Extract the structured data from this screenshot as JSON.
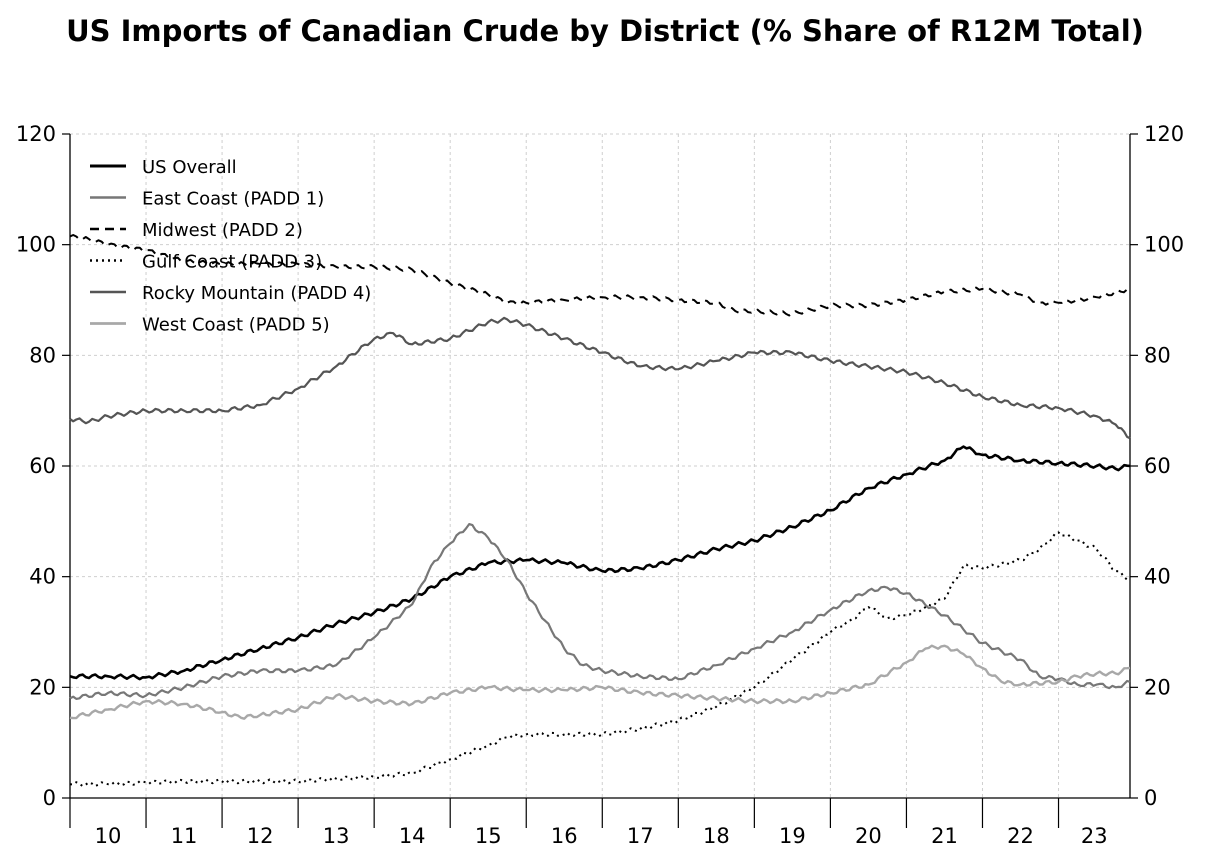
{
  "chart_data": {
    "type": "line",
    "title": "US Imports of Canadian Crude by District (% Share of R12M Total)",
    "xlabel": "",
    "ylabel": "",
    "x_tick_labels": [
      "10",
      "11",
      "12",
      "13",
      "14",
      "15",
      "16",
      "17",
      "18",
      "19",
      "20",
      "21",
      "22",
      "23"
    ],
    "x_range": [
      2010.0,
      2023.94
    ],
    "ylim": [
      0,
      120
    ],
    "y_ticks": [
      0,
      20,
      40,
      60,
      80,
      100,
      120
    ],
    "y_tick_labels": [
      "0",
      "20",
      "40",
      "60",
      "80",
      "100",
      "120"
    ],
    "right_axis": true,
    "grid": true,
    "legend_position": "top-left",
    "series": [
      {
        "name": "US Overall",
        "color": "#000000",
        "width": 2.6,
        "dash": "",
        "points": [
          [
            2010.0,
            22
          ],
          [
            2010.5,
            22
          ],
          [
            2011.0,
            21.8
          ],
          [
            2011.5,
            23
          ],
          [
            2012.0,
            25
          ],
          [
            2012.5,
            27
          ],
          [
            2013.0,
            29
          ],
          [
            2013.5,
            31.5
          ],
          [
            2014.0,
            33.5
          ],
          [
            2014.5,
            36
          ],
          [
            2015.0,
            40
          ],
          [
            2015.5,
            42.5
          ],
          [
            2016.0,
            43
          ],
          [
            2016.5,
            42.5
          ],
          [
            2017.0,
            41
          ],
          [
            2017.5,
            41.5
          ],
          [
            2018.0,
            43
          ],
          [
            2018.5,
            45
          ],
          [
            2019.0,
            46.5
          ],
          [
            2019.5,
            49
          ],
          [
            2020.0,
            52
          ],
          [
            2020.5,
            56
          ],
          [
            2021.0,
            58.5
          ],
          [
            2021.5,
            61
          ],
          [
            2021.75,
            63.5
          ],
          [
            2022.0,
            62
          ],
          [
            2022.5,
            61
          ],
          [
            2023.0,
            60.5
          ],
          [
            2023.5,
            60
          ],
          [
            2023.75,
            59.5
          ],
          [
            2023.94,
            60
          ]
        ]
      },
      {
        "name": "East Coast (PADD 1)",
        "color": "#777777",
        "width": 2.2,
        "dash": "",
        "points": [
          [
            2010.0,
            18
          ],
          [
            2010.5,
            19
          ],
          [
            2011.0,
            18.5
          ],
          [
            2011.5,
            20
          ],
          [
            2012.0,
            22
          ],
          [
            2012.5,
            23
          ],
          [
            2013.0,
            23
          ],
          [
            2013.5,
            24
          ],
          [
            2014.0,
            29
          ],
          [
            2014.5,
            35
          ],
          [
            2014.75,
            42
          ],
          [
            2015.0,
            46
          ],
          [
            2015.25,
            49.5
          ],
          [
            2015.5,
            47
          ],
          [
            2015.75,
            43
          ],
          [
            2016.0,
            37
          ],
          [
            2016.25,
            32
          ],
          [
            2016.5,
            27
          ],
          [
            2016.75,
            24
          ],
          [
            2017.0,
            23
          ],
          [
            2017.5,
            22
          ],
          [
            2018.0,
            21.5
          ],
          [
            2018.5,
            24
          ],
          [
            2019.0,
            27
          ],
          [
            2019.5,
            30
          ],
          [
            2020.0,
            34
          ],
          [
            2020.5,
            37.5
          ],
          [
            2020.75,
            38
          ],
          [
            2021.0,
            37
          ],
          [
            2021.5,
            33
          ],
          [
            2022.0,
            28
          ],
          [
            2022.5,
            25
          ],
          [
            2022.75,
            22
          ],
          [
            2023.0,
            21.5
          ],
          [
            2023.25,
            20.5
          ],
          [
            2023.5,
            20.5
          ],
          [
            2023.75,
            20
          ],
          [
            2023.94,
            21
          ]
        ]
      },
      {
        "name": "Midwest (PADD 2)",
        "color": "#000000",
        "width": 2.0,
        "dash": "9 6",
        "points": [
          [
            2010.0,
            101.5
          ],
          [
            2010.25,
            101
          ],
          [
            2010.5,
            100
          ],
          [
            2011.0,
            99
          ],
          [
            2011.5,
            97
          ],
          [
            2012.0,
            96.5
          ],
          [
            2012.5,
            96.5
          ],
          [
            2013.0,
            96.5
          ],
          [
            2013.5,
            96
          ],
          [
            2014.0,
            96
          ],
          [
            2014.5,
            95.5
          ],
          [
            2015.0,
            93
          ],
          [
            2015.5,
            91
          ],
          [
            2015.75,
            89.5
          ],
          [
            2016.0,
            89.5
          ],
          [
            2016.5,
            90
          ],
          [
            2017.0,
            90.5
          ],
          [
            2017.5,
            90.5
          ],
          [
            2018.0,
            90
          ],
          [
            2018.5,
            89.5
          ],
          [
            2018.75,
            88
          ],
          [
            2019.0,
            88
          ],
          [
            2019.5,
            87.5
          ],
          [
            2020.0,
            89
          ],
          [
            2020.5,
            89
          ],
          [
            2021.0,
            90
          ],
          [
            2021.5,
            91.5
          ],
          [
            2022.0,
            92
          ],
          [
            2022.5,
            91
          ],
          [
            2022.75,
            89.5
          ],
          [
            2023.0,
            89.5
          ],
          [
            2023.5,
            90.5
          ],
          [
            2023.94,
            92
          ]
        ]
      },
      {
        "name": "Gulf Coast (PADD 3)",
        "color": "#000000",
        "width": 2.0,
        "dash": "2 4",
        "points": [
          [
            2010.0,
            2.5
          ],
          [
            2010.5,
            2.5
          ],
          [
            2011.0,
            2.8
          ],
          [
            2011.5,
            3
          ],
          [
            2012.0,
            3
          ],
          [
            2012.5,
            3
          ],
          [
            2013.0,
            3
          ],
          [
            2013.5,
            3.5
          ],
          [
            2014.0,
            3.8
          ],
          [
            2014.5,
            4.5
          ],
          [
            2015.0,
            7
          ],
          [
            2015.5,
            9.5
          ],
          [
            2015.75,
            11
          ],
          [
            2016.0,
            11.5
          ],
          [
            2016.5,
            11.5
          ],
          [
            2017.0,
            11.5
          ],
          [
            2017.5,
            12.5
          ],
          [
            2018.0,
            14
          ],
          [
            2018.5,
            16.5
          ],
          [
            2019.0,
            20
          ],
          [
            2019.5,
            25
          ],
          [
            2020.0,
            30
          ],
          [
            2020.25,
            32
          ],
          [
            2020.5,
            34.5
          ],
          [
            2020.75,
            32.5
          ],
          [
            2021.0,
            33
          ],
          [
            2021.25,
            34.5
          ],
          [
            2021.5,
            36
          ],
          [
            2021.75,
            42
          ],
          [
            2022.0,
            41.5
          ],
          [
            2022.5,
            43
          ],
          [
            2022.75,
            45
          ],
          [
            2023.0,
            48
          ],
          [
            2023.25,
            46.5
          ],
          [
            2023.5,
            45
          ],
          [
            2023.75,
            41
          ],
          [
            2023.94,
            39.5
          ]
        ]
      },
      {
        "name": "Rocky Mountain (PADD 4)",
        "color": "#555555",
        "width": 2.2,
        "dash": "",
        "points": [
          [
            2010.0,
            68.5
          ],
          [
            2010.25,
            68
          ],
          [
            2010.5,
            69
          ],
          [
            2011.0,
            70
          ],
          [
            2011.5,
            70
          ],
          [
            2012.0,
            70
          ],
          [
            2012.5,
            71
          ],
          [
            2013.0,
            74
          ],
          [
            2013.5,
            78
          ],
          [
            2014.0,
            83
          ],
          [
            2014.25,
            84
          ],
          [
            2014.5,
            82
          ],
          [
            2015.0,
            83
          ],
          [
            2015.5,
            86
          ],
          [
            2015.75,
            86.5
          ],
          [
            2016.0,
            85.5
          ],
          [
            2016.5,
            83
          ],
          [
            2017.0,
            80.5
          ],
          [
            2017.5,
            78
          ],
          [
            2018.0,
            77.5
          ],
          [
            2018.5,
            79
          ],
          [
            2019.0,
            80.5
          ],
          [
            2019.5,
            80.5
          ],
          [
            2020.0,
            79
          ],
          [
            2020.5,
            78
          ],
          [
            2021.0,
            77
          ],
          [
            2021.5,
            75
          ],
          [
            2022.0,
            72.5
          ],
          [
            2022.5,
            71
          ],
          [
            2023.0,
            70.5
          ],
          [
            2023.5,
            69
          ],
          [
            2023.75,
            67.5
          ],
          [
            2023.94,
            65
          ]
        ]
      },
      {
        "name": "West Coast (PADD 5)",
        "color": "#a8a8a8",
        "width": 2.4,
        "dash": "",
        "points": [
          [
            2010.0,
            14.5
          ],
          [
            2010.5,
            16
          ],
          [
            2011.0,
            17.5
          ],
          [
            2011.5,
            17
          ],
          [
            2012.0,
            15.5
          ],
          [
            2012.25,
            14.5
          ],
          [
            2012.5,
            15
          ],
          [
            2013.0,
            16
          ],
          [
            2013.5,
            18.5
          ],
          [
            2014.0,
            17.5
          ],
          [
            2014.5,
            17
          ],
          [
            2015.0,
            19
          ],
          [
            2015.5,
            20
          ],
          [
            2016.0,
            19.5
          ],
          [
            2016.5,
            19.5
          ],
          [
            2017.0,
            20
          ],
          [
            2017.5,
            19
          ],
          [
            2018.0,
            18.5
          ],
          [
            2018.5,
            18
          ],
          [
            2019.0,
            17.5
          ],
          [
            2019.5,
            17.5
          ],
          [
            2020.0,
            19
          ],
          [
            2020.5,
            20.5
          ],
          [
            2021.0,
            24.5
          ],
          [
            2021.25,
            27
          ],
          [
            2021.5,
            27.5
          ],
          [
            2021.75,
            26
          ],
          [
            2022.0,
            23.5
          ],
          [
            2022.25,
            21
          ],
          [
            2022.5,
            20.5
          ],
          [
            2023.0,
            21
          ],
          [
            2023.25,
            22
          ],
          [
            2023.5,
            22.5
          ],
          [
            2023.75,
            22.5
          ],
          [
            2023.94,
            23.5
          ]
        ]
      }
    ]
  }
}
